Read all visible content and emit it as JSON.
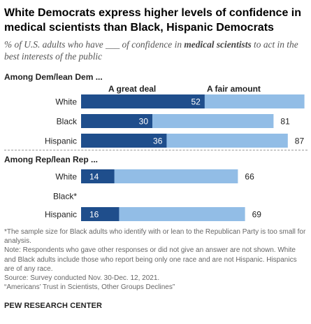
{
  "title": "White Democrats express higher levels of confidence in medical scientists than Black, Hispanic Democrats",
  "subtitle_pre": "% of U.S. adults who have ___ of confidence in ",
  "subtitle_bold": "medical scientists",
  "subtitle_post": " to act in the best interests of the public",
  "notes": {
    "asterisk": "*The sample size for Black adults who identify with or lean to the Republican Party is too small for analysis.",
    "note": "Note: Respondents who gave other responses or did not give an answer are not shown. White and Black adults include those who report being only one race and are not Hispanic. Hispanics are of any race.",
    "source": "Source: Survey conducted Nov. 30-Dec. 12, 2021.",
    "report": "“Americans’ Trust in Scientists, Other Groups Declines”"
  },
  "brand": "PEW RESEARCH CENTER",
  "colors": {
    "great_deal": "#1f4e8c",
    "fair_amount": "#92bde6"
  },
  "chart_data": {
    "type": "bar",
    "orientation": "horizontal",
    "stacked": true,
    "legend": [
      "A great deal",
      "A fair amount"
    ],
    "xlim": [
      0,
      100
    ],
    "groups": [
      {
        "label": "Among Dem/lean Dem ...",
        "rows": [
          {
            "category": "White",
            "great_deal": 52,
            "total": 94
          },
          {
            "category": "Black",
            "great_deal": 30,
            "total": 81
          },
          {
            "category": "Hispanic",
            "great_deal": 36,
            "total": 87
          }
        ]
      },
      {
        "label": "Among Rep/lean Rep ...",
        "rows": [
          {
            "category": "White",
            "great_deal": 14,
            "total": 66
          },
          {
            "category": "Black*",
            "great_deal": null,
            "total": null
          },
          {
            "category": "Hispanic",
            "great_deal": 16,
            "total": 69
          }
        ]
      }
    ]
  }
}
